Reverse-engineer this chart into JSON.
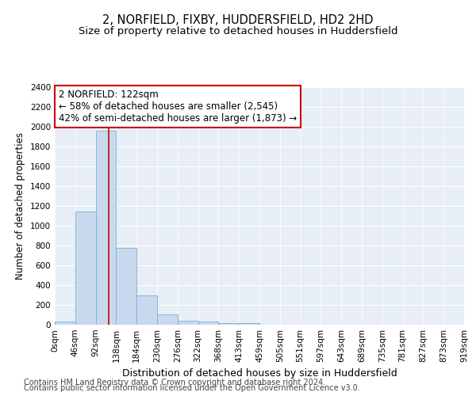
{
  "title": "2, NORFIELD, FIXBY, HUDDERSFIELD, HD2 2HD",
  "subtitle": "Size of property relative to detached houses in Huddersfield",
  "xlabel": "Distribution of detached houses by size in Huddersfield",
  "ylabel": "Number of detached properties",
  "bin_labels": [
    "0sqm",
    "46sqm",
    "92sqm",
    "138sqm",
    "184sqm",
    "230sqm",
    "276sqm",
    "322sqm",
    "368sqm",
    "413sqm",
    "459sqm",
    "505sqm",
    "551sqm",
    "597sqm",
    "643sqm",
    "689sqm",
    "735sqm",
    "781sqm",
    "827sqm",
    "873sqm",
    "919sqm"
  ],
  "bar_values": [
    30,
    1145,
    1960,
    780,
    300,
    105,
    40,
    30,
    20,
    15,
    0,
    0,
    0,
    0,
    0,
    0,
    0,
    0,
    0,
    0
  ],
  "bar_color": "#c8d9ee",
  "bar_edge_color": "#7aaed4",
  "vline_x": 2.65,
  "vline_color": "#cc0000",
  "annotation_line1": "2 NORFIELD: 122sqm",
  "annotation_line2": "← 58% of detached houses are smaller (2,545)",
  "annotation_line3": "42% of semi-detached houses are larger (1,873) →",
  "annotation_box_color": "#cc0000",
  "ylim": [
    0,
    2400
  ],
  "yticks": [
    0,
    200,
    400,
    600,
    800,
    1000,
    1200,
    1400,
    1600,
    1800,
    2000,
    2200,
    2400
  ],
  "footer_line1": "Contains HM Land Registry data © Crown copyright and database right 2024.",
  "footer_line2": "Contains public sector information licensed under the Open Government Licence v3.0.",
  "fig_bg_color": "#ffffff",
  "plot_bg_color": "#e8eef6",
  "grid_color": "#ffffff",
  "title_fontsize": 10.5,
  "subtitle_fontsize": 9.5,
  "xlabel_fontsize": 9,
  "ylabel_fontsize": 8.5,
  "tick_fontsize": 7.5,
  "annotation_fontsize": 8.5,
  "footer_fontsize": 7
}
